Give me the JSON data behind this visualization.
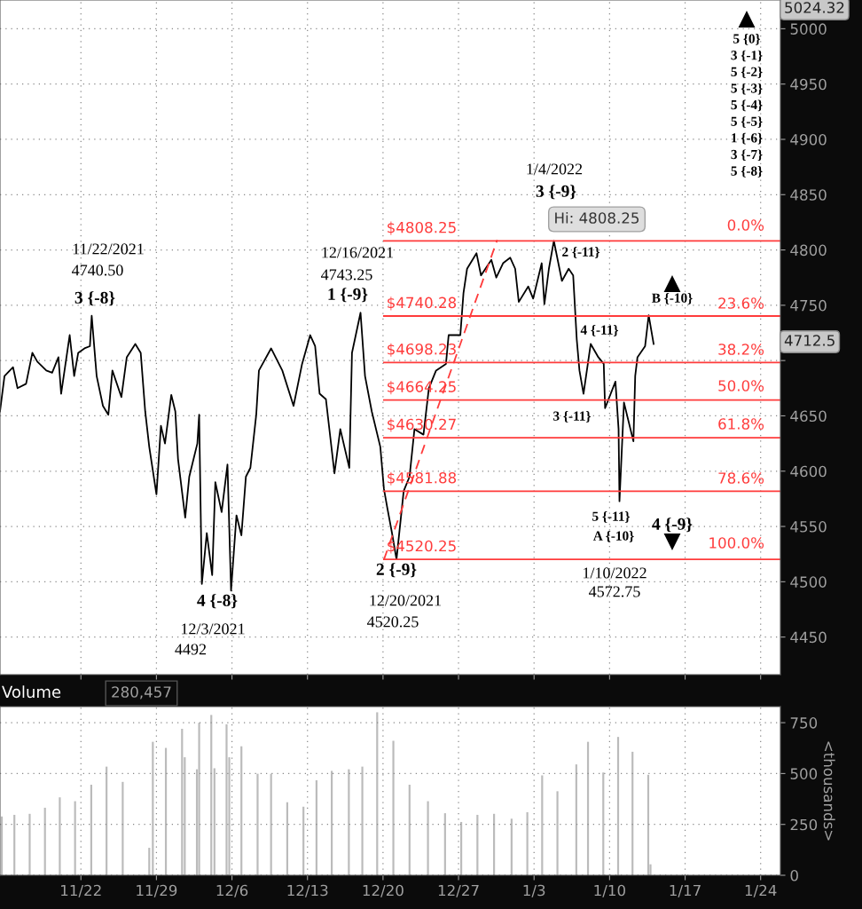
{
  "chart_data": [
    {
      "type": "line",
      "xlim": [
        "2021-11-14T12:00",
        "2022-01-25T20:00"
      ],
      "ylim": [
        4416,
        5026
      ],
      "xticks": [
        {
          "value": "2021-11-22",
          "label": null
        },
        {
          "value": "2021-11-29",
          "label": null
        },
        {
          "value": "2021-12-06",
          "label": null
        },
        {
          "value": "2021-12-13",
          "label": null
        },
        {
          "value": "2021-12-20",
          "label": null
        },
        {
          "value": "2021-12-27",
          "label": null
        },
        {
          "value": "2022-01-03",
          "label": null
        },
        {
          "value": "2022-01-10",
          "label": null
        },
        {
          "value": "2022-01-17",
          "label": null
        },
        {
          "value": "2022-01-24",
          "label": null
        }
      ],
      "yticks": [
        4450,
        4500,
        4550,
        4600,
        4650,
        {
          "value": 4700,
          "label": null
        },
        4750,
        4800,
        4850,
        4900,
        4950,
        5000
      ],
      "tick_labels": "y",
      "grid": true,
      "legend": false,
      "series": [
        {
          "color": "#000000",
          "x": [
            "2021-11-14T12:00",
            "2021-11-14T22:00",
            "2021-11-15T17:00",
            "2021-11-16T03:00",
            "2021-11-16T22:00",
            "2021-11-17T12:00",
            "2021-11-17T23:00",
            "2021-11-18T19:00",
            "2021-11-19T08:00",
            "2021-11-19T22:00",
            "2021-11-20T04:00",
            "2021-11-20T23:00",
            "2021-11-21T09:00",
            "2021-11-21T18:00",
            "2021-11-22T08:00",
            "2021-11-22T20:00",
            "2021-11-23T00:00",
            "2021-11-23T11:00",
            "2021-11-24T01:00",
            "2021-11-24T13:00",
            "2021-11-24T22:00",
            "2021-11-25T18:00",
            "2021-11-26T06:00",
            "2021-11-27T01:00",
            "2021-11-27T13:00",
            "2021-11-27T23:00",
            "2021-11-28T08:00",
            "2021-11-29T00:00",
            "2021-11-29T10:00",
            "2021-11-29T19:00",
            "2021-11-30T09:00",
            "2021-11-30T18:00",
            "2021-12-01T00:00",
            "2021-12-01T16:00",
            "2021-12-02T01:00",
            "2021-12-02T19:00",
            "2021-12-02T23:00",
            "2021-12-03T05:00",
            "2021-12-03T16:00",
            "2021-12-04T04:00",
            "2021-12-04T11:00",
            "2021-12-05T01:00",
            "2021-12-05T14:00",
            "2021-12-05T22:00",
            "2021-12-06T10:00",
            "2021-12-06T21:00",
            "2021-12-07T07:00",
            "2021-12-07T17:00",
            "2021-12-08T06:00",
            "2021-12-08T12:00",
            "2021-12-09T15:00",
            "2021-12-10T16:00",
            "2021-12-11T17:00",
            "2021-12-12T12:00",
            "2021-12-13T06:00",
            "2021-12-13T17:00",
            "2021-12-14T03:00",
            "2021-12-14T17:00",
            "2021-12-15T12:00",
            "2021-12-16T01:00",
            "2021-12-16T21:00",
            "2021-12-17T03:00",
            "2021-12-17T22:00",
            "2021-12-18T08:00",
            "2021-12-18T23:00",
            "2021-12-19T18:00",
            "2021-12-20T02:00",
            "2021-12-20T09:00",
            "2021-12-20T20:00",
            "2021-12-21T06:00",
            "2021-12-21T22:00",
            "2021-12-22T11:00",
            "2021-12-22T22:00",
            "2021-12-23T18:00",
            "2021-12-24T06:00",
            "2021-12-24T22:00",
            "2021-12-25T20:00",
            "2021-12-26T02:00",
            "2021-12-27T04:00",
            "2021-12-27T11:00",
            "2021-12-27T19:00",
            "2021-12-28T16:00",
            "2021-12-29T02:00",
            "2021-12-30T01:00",
            "2021-12-30T12:00",
            "2021-12-31T03:00",
            "2021-12-31T19:00",
            "2022-01-01T06:00",
            "2022-01-01T14:00",
            "2022-01-02T11:00",
            "2022-01-02T22:00",
            "2022-01-03T17:00",
            "2022-01-03T23:00",
            "2022-01-04T09:00",
            "2022-01-04T20:00",
            "2022-01-05T14:00",
            "2022-01-06T05:00",
            "2022-01-06T15:00",
            "2022-01-06T23:00",
            "2022-01-07T05:00",
            "2022-01-07T14:00",
            "2022-01-08T06:00",
            "2022-01-08T23:00",
            "2022-01-09T11:00",
            "2022-01-09T14:00",
            "2022-01-10T13:00",
            "2022-01-10T20:00",
            "2022-01-10T22:00",
            "2022-01-11T08:00",
            "2022-01-12T05:00",
            "2022-01-12T09:00",
            "2022-01-12T14:00",
            "2022-01-13T07:00",
            "2022-01-13T15:00",
            "2022-01-14T02:00"
          ],
          "values": [
            4654,
            4686,
            4694,
            4675,
            4679,
            4707,
            4699,
            4691,
            4689,
            4703,
            4670,
            4723,
            4686,
            4707,
            4711,
            4713,
            4740.5,
            4686,
            4659,
            4651,
            4691,
            4667,
            4703,
            4715,
            4707,
            4654,
            4622,
            4579,
            4641,
            4625,
            4669,
            4654,
            4611,
            4558,
            4595,
            4625,
            4651,
            4498,
            4544,
            4506,
            4590,
            4563,
            4606,
            4492,
            4560,
            4542,
            4595,
            4603,
            4651,
            4691,
            4711,
            4691,
            4659,
            4697,
            4723,
            4713,
            4670,
            4665,
            4598,
            4638,
            4603,
            4707,
            4743.25,
            4686,
            4654,
            4622,
            4584,
            4568,
            4544,
            4520.25,
            4582,
            4595,
            4638,
            4633,
            4675,
            4691,
            4697,
            4723,
            4723,
            4761,
            4783,
            4797,
            4777,
            4791,
            4775,
            4788,
            4793,
            4783,
            4753,
            4767,
            4756,
            4788,
            4751,
            4783,
            4808.25,
            4772,
            4783,
            4777,
            4719,
            4691,
            4670,
            4715,
            4703,
            4697,
            4657,
            4681,
            4638,
            4572.75,
            4662,
            4627,
            4686,
            4703,
            4713,
            4741,
            4715
          ]
        },
        {
          "color": "#ff3b3b",
          "line_style": "dashed",
          "x": [
            "2021-12-20T02:00",
            "2021-12-30T14:00"
          ],
          "values": [
            4520,
            4809
          ]
        },
        {
          "color": "#ff3b3b",
          "x": [
            "2021-12-20T02:00",
            "2022-01-25T20:00"
          ],
          "values": [
            4808.25,
            4808.25
          ],
          "value_labels": [
            "$4808.25",
            null
          ]
        },
        {
          "color": "#ff3b3b",
          "x": [
            "2021-12-20T02:00",
            "2022-01-25T20:00"
          ],
          "values": [
            4740.28,
            4740.28
          ],
          "value_labels": [
            "$4740.28",
            null
          ]
        },
        {
          "color": "#ff3b3b",
          "x": [
            "2021-12-20T02:00",
            "2022-01-25T20:00"
          ],
          "values": [
            4698.23,
            4698.23
          ],
          "value_labels": [
            "$4698.23",
            null
          ]
        },
        {
          "color": "#ff3b3b",
          "x": [
            "2021-12-20T02:00",
            "2022-01-25T20:00"
          ],
          "values": [
            4664.25,
            4664.25
          ],
          "value_labels": [
            "$4664.25",
            null
          ]
        },
        {
          "color": "#ff3b3b",
          "x": [
            "2021-12-20T02:00",
            "2022-01-25T20:00"
          ],
          "values": [
            4630.27,
            4630.27
          ],
          "value_labels": [
            "$4630.27",
            null
          ]
        },
        {
          "color": "#ff3b3b",
          "x": [
            "2021-12-20T02:00",
            "2022-01-25T20:00"
          ],
          "values": [
            4581.88,
            4581.88
          ],
          "value_labels": [
            "$4581.88",
            null
          ]
        },
        {
          "color": "#ff3b3b",
          "x": [
            "2021-12-20T02:00",
            "2022-01-25T20:00"
          ],
          "values": [
            4520.25,
            4520.25
          ],
          "value_labels": [
            "$4520.25",
            null
          ]
        }
      ],
      "annotations": [
        "5 {0}\n3 {-1}\n5 {-2}\n5 {-3}\n5 {-4}\n5 {-5}\n1 {-6}\n3 {-7}\n5 {-8}",
        "11/22/2021",
        "4740.50",
        "3 {-8}",
        "12/16/2021",
        "4743.25",
        "1 {-9}",
        "4 {-8}",
        "12/3/2021",
        "4492",
        "2 {-9}",
        "12/20/2021",
        "4520.25",
        "1/4/2022",
        "3 {-9}",
        "Hi: 4808.25",
        "2 {-11}",
        "B {-10}",
        "4 {-11}",
        "3 {-11}",
        "5 {-11}",
        "A {-10}",
        "4 {-9}",
        "1/10/2022",
        "4572.75",
        "4712.5",
        "5024.32",
        "0.0%",
        "23.6%",
        "38.2%",
        "50.0%",
        "61.8%",
        "78.6%",
        "100.0%"
      ]
    },
    {
      "type": "bar",
      "title": "Volume",
      "subtitle": "280,457",
      "ylabel": "<thousands>",
      "color": "#bbbbbb",
      "xlim": [
        "2021-11-14T12:00",
        "2022-01-25T20:00"
      ],
      "ylim": [
        0,
        829
      ],
      "yticks": [
        0,
        250,
        500,
        750
      ],
      "xticks": [
        {
          "value": "2021-11-22",
          "label": "11/22"
        },
        {
          "value": "2021-11-29",
          "label": "11/29"
        },
        {
          "value": "2021-12-06",
          "label": "12/6"
        },
        {
          "value": "2021-12-13",
          "label": "12/13"
        },
        {
          "value": "2021-12-20",
          "label": "12/20"
        },
        {
          "value": "2021-12-27",
          "label": "12/27"
        },
        {
          "value": "2022-01-03",
          "label": "1/3"
        },
        {
          "value": "2022-01-10",
          "label": "1/10"
        },
        {
          "value": "2022-01-17",
          "label": "1/17"
        },
        {
          "value": "2022-01-24",
          "label": "1/24"
        }
      ],
      "grid": true,
      "legend": false,
      "x": [
        "2021-11-14T16:00",
        "2021-11-15T20:00",
        "2021-11-17T06:00",
        "2021-11-18T16:00",
        "2021-11-20T01:00",
        "2021-11-21T11:00",
        "2021-11-22T23:00",
        "2021-11-24T09:00",
        "2021-11-25T21:00",
        "2021-11-28T08:00",
        "2021-11-28T16:00",
        "2021-11-29T21:00",
        "2021-12-01T09:00",
        "2021-12-01T15:00",
        "2021-12-02T18:00",
        "2021-12-02T23:00",
        "2021-12-04T02:00",
        "2021-12-04T09:00",
        "2021-12-05T12:00",
        "2021-12-05T18:00",
        "2021-12-06T21:00",
        "2021-12-08T09:00",
        "2021-12-09T15:00",
        "2021-12-11T03:00",
        "2021-12-12T15:00",
        "2021-12-13T20:00",
        "2021-12-15T06:00",
        "2021-12-16T20:00",
        "2021-12-18T02:00",
        "2021-12-19T11:00",
        "2021-12-20T23:00",
        "2021-12-22T11:00",
        "2021-12-24T04:00",
        "2021-12-25T18:00",
        "2021-12-27T06:00",
        "2021-12-28T18:00",
        "2021-12-30T07:00",
        "2021-12-31T22:00",
        "2022-01-02T09:00",
        "2022-01-03T18:00",
        "2022-01-05T04:00",
        "2022-01-06T22:00",
        "2022-01-08T00:00",
        "2022-01-09T10:00",
        "2022-01-10T19:00",
        "2022-01-12T03:00",
        "2022-01-13T14:00",
        "2022-01-13T19:00"
      ],
      "values": [
        289,
        297,
        302,
        332,
        383,
        364,
        445,
        534,
        459,
        135,
        656,
        626,
        720,
        580,
        521,
        750,
        788,
        526,
        742,
        580,
        634,
        499,
        499,
        359,
        337,
        467,
        513,
        521,
        534,
        801,
        661,
        445,
        364,
        305,
        262,
        297,
        302,
        278,
        310,
        491,
        413,
        545,
        656,
        505,
        680,
        607,
        494,
        54
      ]
    }
  ]
}
